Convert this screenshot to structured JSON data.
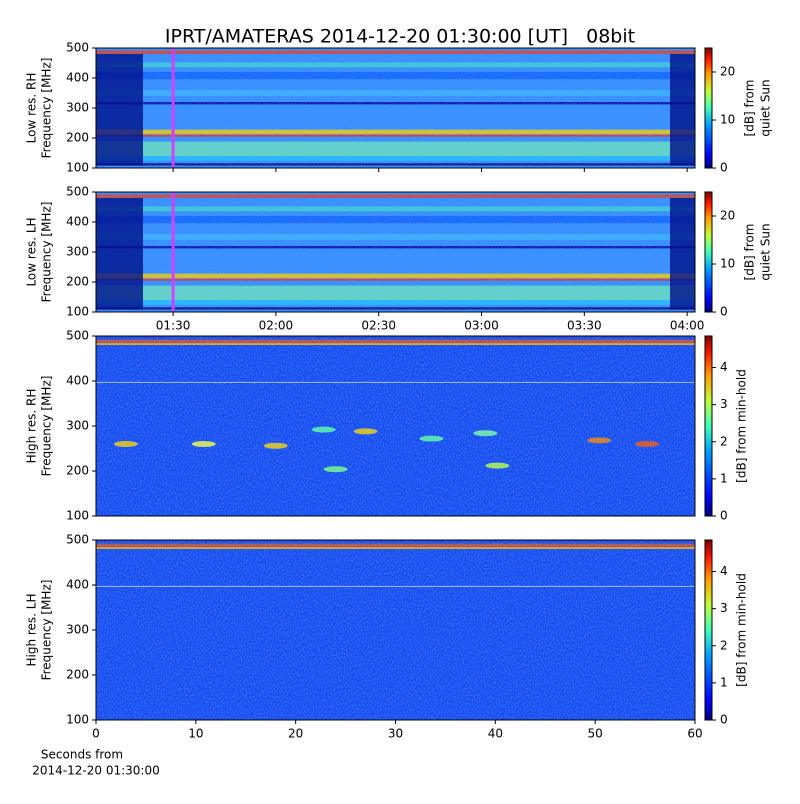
{
  "chart_data": [
    {
      "type": "spectrogram",
      "title": "IPRT/AMATERAS 2014-12-20 01:30:00 [UT]   08bit",
      "ylabel": [
        "Low res. RH",
        "Frequency [MHz]"
      ],
      "ylim": [
        100,
        500
      ],
      "yticks": [
        100,
        200,
        300,
        400,
        500
      ],
      "xlim": [
        67.5,
        242.3
      ],
      "marker_x": 90,
      "colorbar_label": [
        "[dB] from",
        "quiet Sun"
      ],
      "clim": [
        0,
        25
      ],
      "cticks": [
        0,
        10,
        20
      ]
    },
    {
      "type": "spectrogram",
      "ylabel": [
        "Low res. LH",
        "Frequency [MHz]"
      ],
      "ylim": [
        100,
        500
      ],
      "yticks": [
        100,
        200,
        300,
        400,
        500
      ],
      "xlim": [
        67.5,
        242.3
      ],
      "marker_x": 90,
      "xticks": [
        {
          "value": 90,
          "label": "01:30"
        },
        {
          "value": 120,
          "label": "02:00"
        },
        {
          "value": 150,
          "label": "02:30"
        },
        {
          "value": 180,
          "label": "03:00"
        },
        {
          "value": 210,
          "label": "03:30"
        },
        {
          "value": 240,
          "label": "04:00"
        }
      ],
      "colorbar_label": [
        "[dB] from",
        "quiet Sun"
      ],
      "clim": [
        0,
        25
      ],
      "cticks": [
        0,
        10,
        20
      ]
    },
    {
      "type": "spectrogram",
      "ylabel": [
        "High res. RH",
        "Frequency [MHz]"
      ],
      "ylim": [
        100,
        500
      ],
      "yticks": [
        100,
        200,
        300,
        400,
        500
      ],
      "xlim": [
        0,
        60
      ],
      "colorbar_label": [
        "[dB] from min-hold"
      ],
      "clim": [
        0,
        4.85
      ],
      "cticks": [
        0,
        1,
        2,
        3,
        4
      ]
    },
    {
      "type": "spectrogram",
      "ylabel": [
        "High res. LH",
        "Frequency [MHz]"
      ],
      "ylim": [
        100,
        500
      ],
      "yticks": [
        100,
        200,
        300,
        400,
        500
      ],
      "xlim": [
        0,
        60
      ],
      "xticks": [
        0,
        10,
        20,
        30,
        40,
        50,
        60
      ],
      "xlabel": [
        "Seconds from",
        "2014-12-20 01:30:00"
      ],
      "colorbar_label": [
        "[dB] from min-hold"
      ],
      "clim": [
        0,
        4.85
      ],
      "cticks": [
        0,
        1,
        2,
        3,
        4
      ]
    }
  ]
}
